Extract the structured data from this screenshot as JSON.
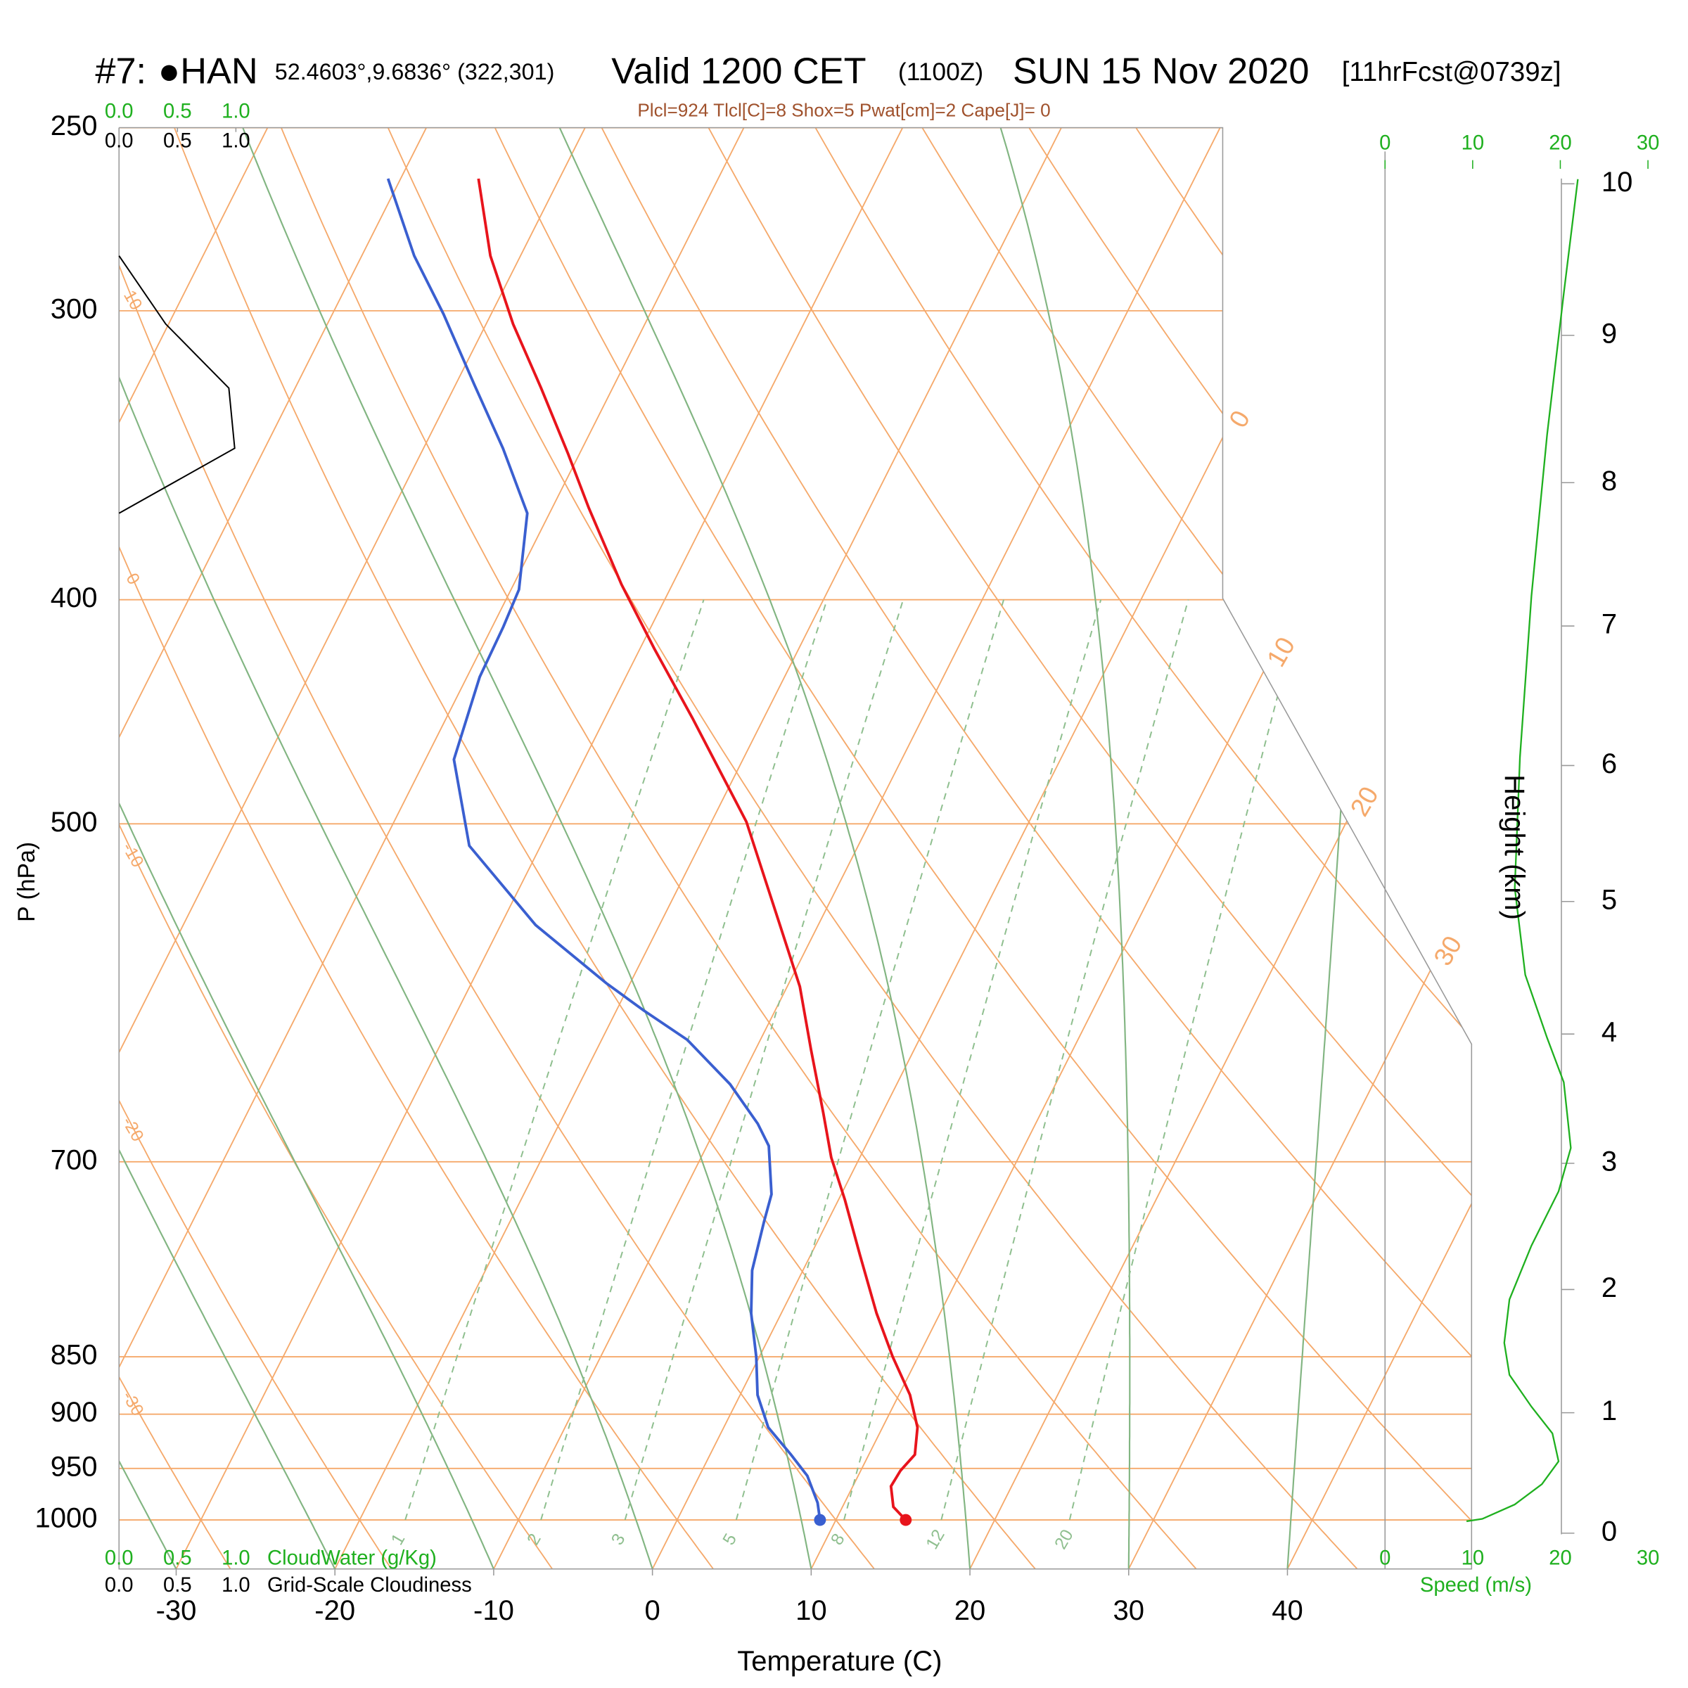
{
  "chart_data": {
    "type": "skewt",
    "title": [
      "#7:",
      "●HAN",
      "52.4603°,9.6836° (322,301)",
      "Valid 1200 CET",
      "(1100Z)",
      "SUN 15 Nov 2020",
      "[11hrFcst@0739z]"
    ],
    "subtitle": "Plcl=924 Tlcl[C]=8 Shox=5 Pwat[cm]=2 Cape[J]= 0",
    "xlabel": "Temperature (C)",
    "ylabel": "P (hPa)",
    "log_y": true,
    "ylim": [
      1050,
      250
    ],
    "yticks": [
      250,
      300,
      400,
      500,
      700,
      850,
      900,
      950,
      1000
    ],
    "xlim": [
      -33.6,
      51.6
    ],
    "xticks": [
      -30,
      -20,
      -10,
      0,
      10,
      20,
      30,
      40
    ],
    "isotherm_labels": [
      0,
      10,
      20,
      30
    ],
    "dry_adiabat_labels": [
      10,
      0,
      -10,
      -20,
      -30
    ],
    "mixing_ratio_labels": [
      1,
      2,
      3,
      5,
      8,
      12,
      20
    ],
    "profiles": [
      {
        "color": "#e8141c",
        "pressure": [
          263,
          284,
          304,
          324,
          346,
          365,
          394,
          420,
          450,
          499,
          551,
          588,
          626,
          667,
          697,
          727,
          768,
          814,
          850,
          883,
          912,
          937,
          952,
          967,
          987,
          1000
        ],
        "values": [
          -55.1,
          -51.9,
          -48.3,
          -44.5,
          -40.7,
          -37.7,
          -33.2,
          -29.1,
          -24.5,
          -17.8,
          -12.6,
          -9.2,
          -6.5,
          -3.7,
          -1.8,
          0.4,
          3.1,
          6.0,
          8.4,
          10.7,
          12.2,
          12.9,
          12.5,
          12.4,
          13.2,
          14.4
        ]
      },
      {
        "color": "#3a5fd0",
        "pressure": [
          263,
          284,
          301,
          323,
          344,
          367,
          396,
          411,
          432,
          469,
          511,
          553,
          586,
          602,
          620,
          648,
          674,
          689,
          723,
          743,
          780,
          814,
          850,
          883,
          912,
          937,
          957,
          983,
          1000
        ],
        "values": [
          -60.8,
          -56.7,
          -53.0,
          -48.8,
          -45.0,
          -41.4,
          -39.5,
          -39.3,
          -39.2,
          -38.2,
          -34.5,
          -27.8,
          -21.5,
          -18.3,
          -14.6,
          -10.5,
          -7.5,
          -6.1,
          -4.4,
          -4.0,
          -3.2,
          -1.9,
          -0.2,
          1.1,
          2.8,
          5.1,
          6.8,
          8.3,
          9.0
        ]
      }
    ],
    "cloud": {
      "cloudwater_label": "CloudWater (g/Kg)",
      "cloudiness_label": "Grid-Scale Cloudiness",
      "xlim": [
        0,
        1
      ],
      "xticks": [
        {
          "value": 0,
          "label": "0.0"
        },
        0.5,
        {
          "value": 1,
          "label": "1.0"
        }
      ],
      "cloudwater_color": "#1fb01f",
      "cloudiness_color": "#000000",
      "cloudiness": {
        "pressure": [
          284,
          304,
          324,
          344,
          367
        ],
        "values": [
          0,
          0.4,
          0.94,
          0.99,
          0
        ]
      }
    },
    "wind": {
      "xlabel": "Speed (m/s)",
      "ylabel": "Height (km)",
      "color": "#1fb01f",
      "xlim": [
        0,
        20
      ],
      "xticks": [
        0,
        10,
        20,
        30
      ],
      "yticks": [
        0,
        1,
        2,
        3,
        4,
        5,
        6,
        7,
        8,
        9,
        10
      ],
      "height": [
        0.1,
        0.12,
        0.24,
        0.41,
        0.6,
        0.83,
        1.05,
        1.31,
        1.57,
        1.92,
        2.35,
        2.78,
        3.12,
        3.63,
        3.97,
        4.45,
        5.1,
        6.06,
        7.21,
        8.33,
        9.28,
        10.03
      ],
      "values": [
        9.3,
        11.1,
        14.8,
        17.9,
        19.8,
        19.1,
        16.7,
        14.2,
        13.6,
        14.2,
        16.7,
        19.8,
        21.2,
        20.4,
        18.5,
        16.0,
        14.8,
        15.4,
        16.7,
        18.5,
        20.4,
        22.0
      ]
    }
  }
}
